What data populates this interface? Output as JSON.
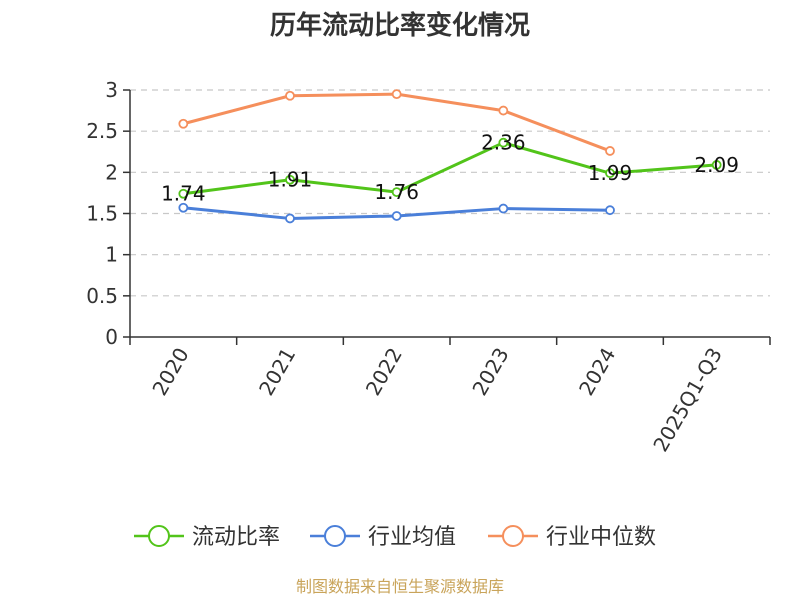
{
  "chart_data": {
    "type": "line",
    "title": "历年流动比率变化情况",
    "source": "制图数据来自恒生聚源数据库",
    "categories": [
      "2020",
      "2021",
      "2022",
      "2023",
      "2024",
      "2025Q1-Q3"
    ],
    "y_ticks": [
      "0",
      "0.5",
      "1",
      "1.5",
      "2",
      "2.5",
      "3"
    ],
    "ylim": [
      0,
      3
    ],
    "grid": true,
    "legend_position": "bottom",
    "series": [
      {
        "name": "流动比率",
        "color": "#52c41a",
        "values": [
          1.74,
          1.91,
          1.76,
          2.36,
          1.99,
          2.09
        ],
        "labels": [
          "1.74",
          "1.91",
          "1.76",
          "2.36",
          "1.99",
          "2.09"
        ]
      },
      {
        "name": "行业均值",
        "color": "#4a7fd9",
        "values": [
          1.57,
          1.44,
          1.47,
          1.56,
          1.54,
          null
        ]
      },
      {
        "name": "行业中位数",
        "color": "#f58f5c",
        "values": [
          2.59,
          2.93,
          2.95,
          2.75,
          2.26,
          null
        ]
      }
    ]
  }
}
